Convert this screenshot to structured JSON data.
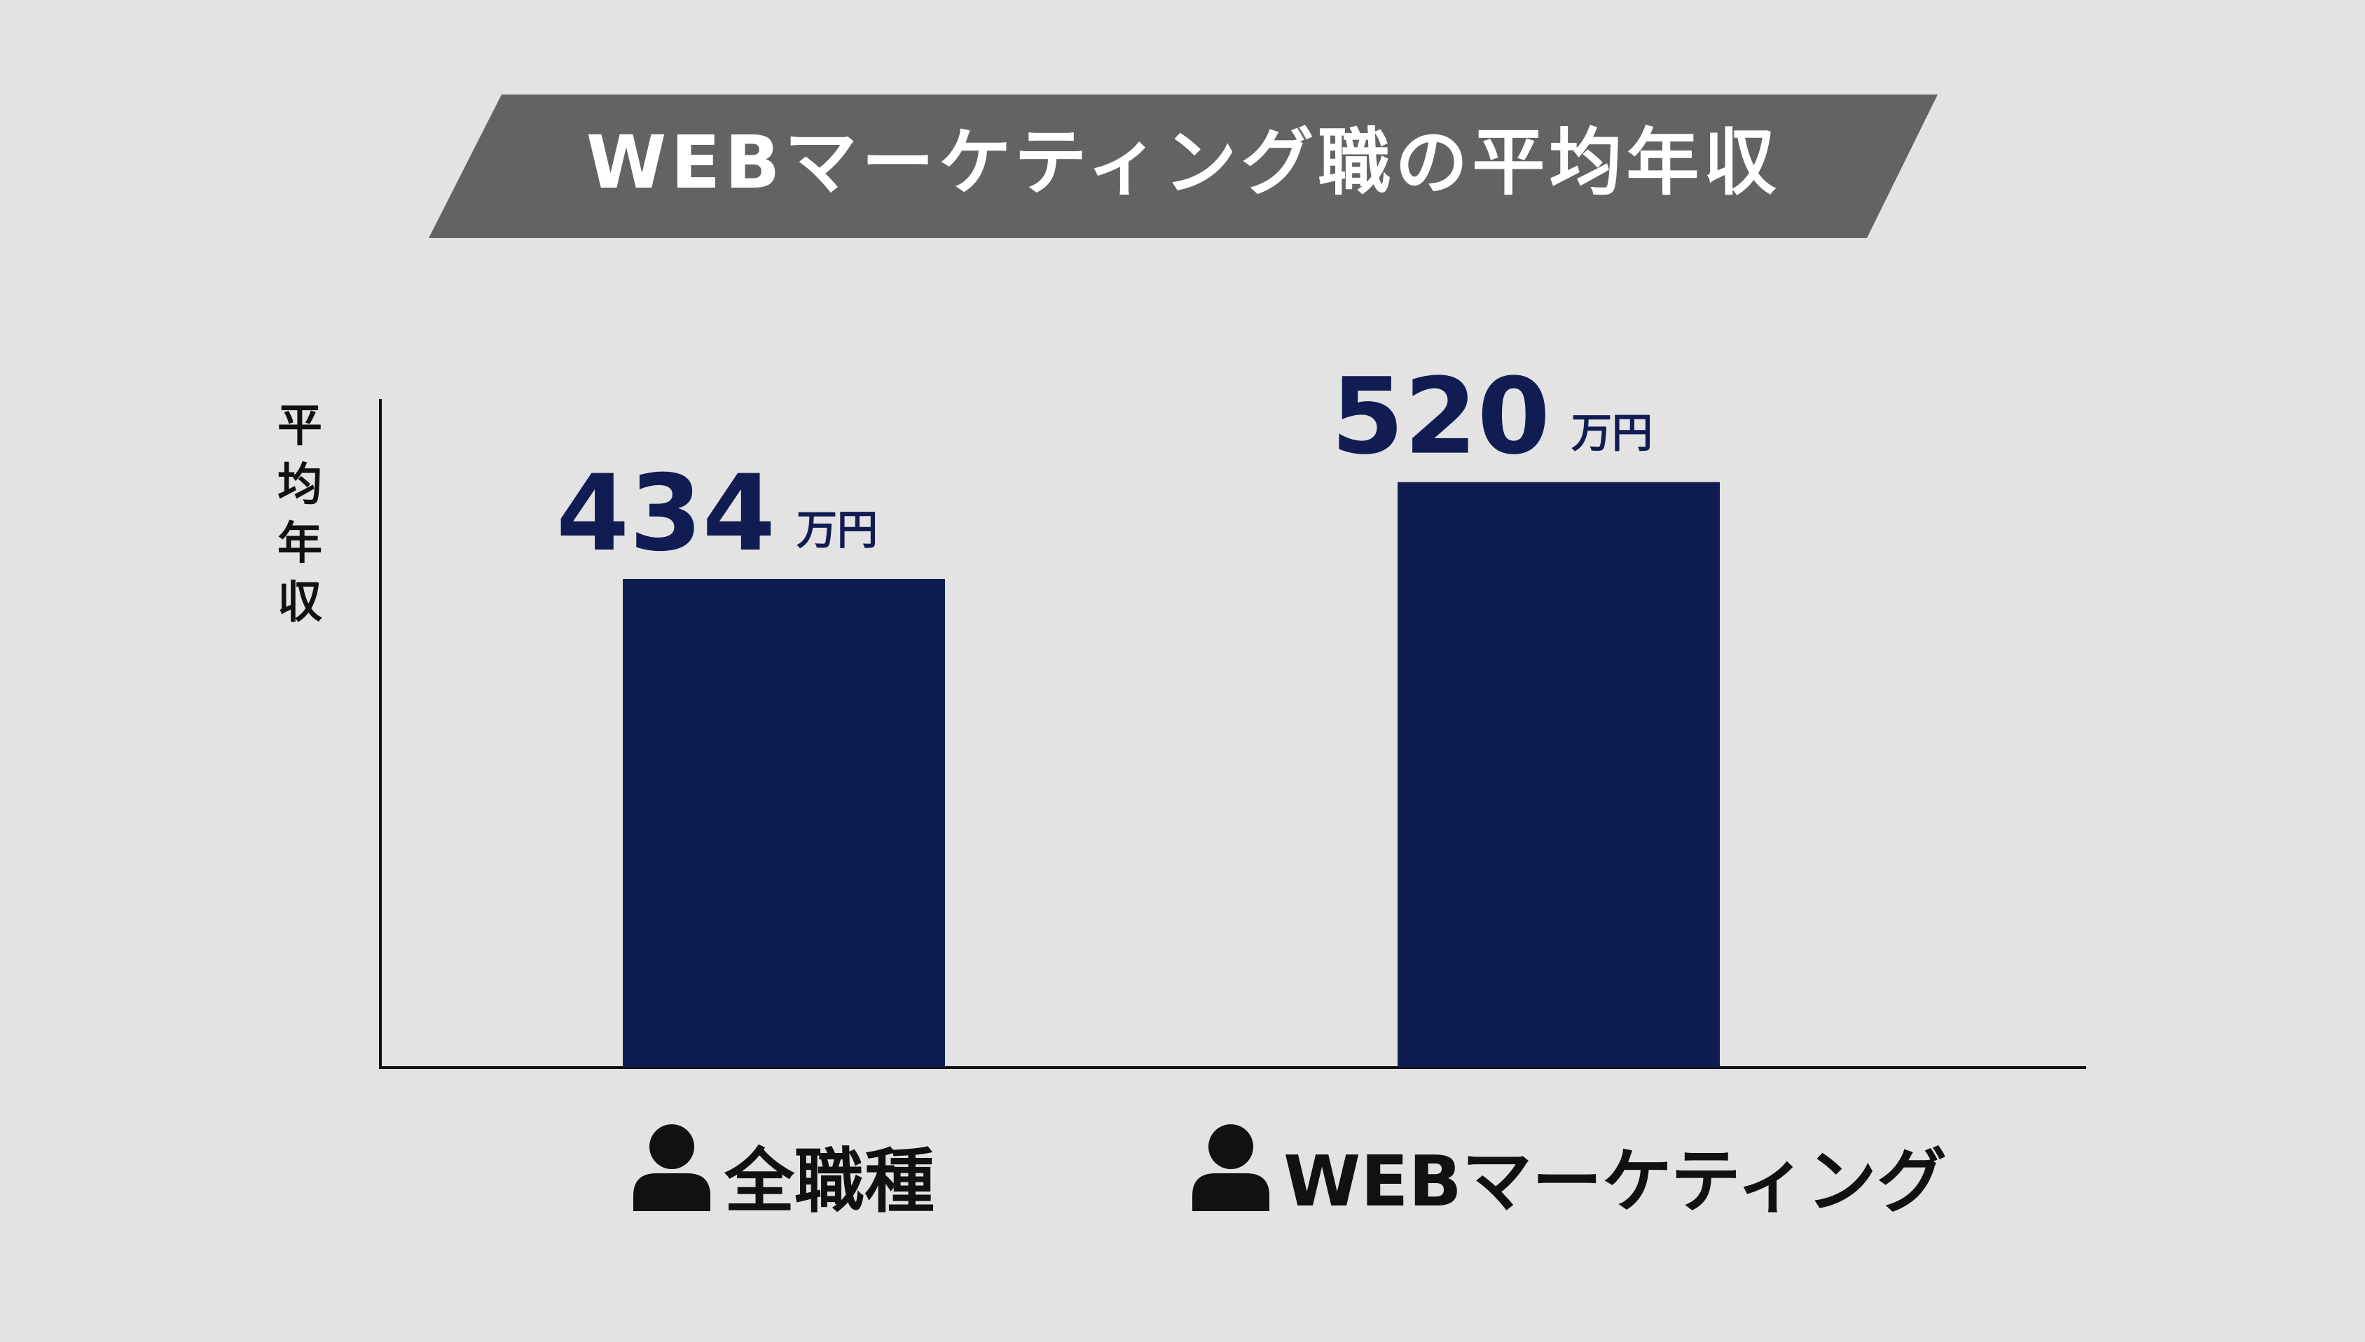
{
  "chart_data": {
    "type": "bar",
    "title": "WEBマーケティング職の平均年収",
    "ylabel": "平均年収",
    "xlabel": "",
    "categories": [
      "全職種",
      "WEBマーケティング"
    ],
    "series": [
      {
        "values": [
          434,
          520
        ]
      }
    ],
    "value_unit": "万円",
    "ylim": [
      0,
      600
    ],
    "grid": false,
    "category_icon": "person-icon",
    "colors": {
      "bar": "#0f1c50",
      "value_text": "#101c52",
      "title_banner": "#636363",
      "title_text": "#ffffff",
      "background": "#e3e3e3",
      "axis": "#111111"
    }
  }
}
